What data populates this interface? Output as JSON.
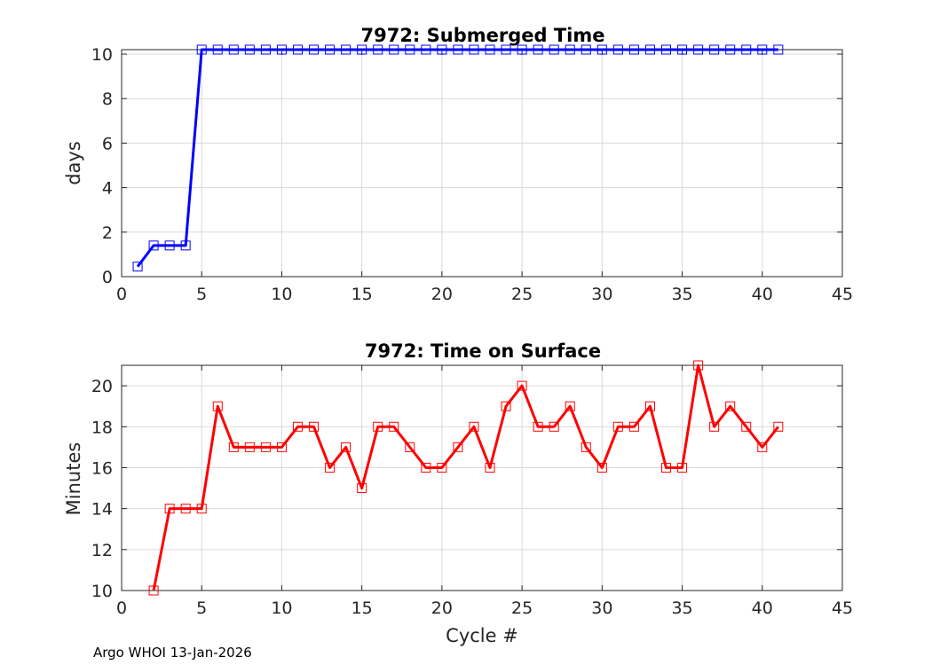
{
  "chart_data": [
    {
      "type": "line",
      "title": "7972: Submerged Time",
      "xlabel": "",
      "ylabel": "days",
      "xlim": [
        0,
        45
      ],
      "ylim": [
        0,
        10.2
      ],
      "xticks": [
        0,
        5,
        10,
        15,
        20,
        25,
        30,
        35,
        40,
        45
      ],
      "yticks": [
        0,
        2,
        4,
        6,
        8,
        10
      ],
      "grid": true,
      "color": "#0000ff",
      "marker": "square",
      "series": [
        {
          "x": [
            1,
            2,
            3,
            4,
            5,
            6,
            7,
            8,
            9,
            10,
            11,
            12,
            13,
            14,
            15,
            16,
            17,
            18,
            19,
            20,
            21,
            22,
            23,
            24,
            25,
            26,
            27,
            28,
            29,
            30,
            31,
            32,
            33,
            34,
            35,
            36,
            37,
            38,
            39,
            40,
            41
          ],
          "values": [
            0.45,
            1.4,
            1.4,
            1.4,
            10.2,
            10.2,
            10.2,
            10.2,
            10.2,
            10.2,
            10.2,
            10.2,
            10.2,
            10.2,
            10.2,
            10.2,
            10.2,
            10.2,
            10.2,
            10.2,
            10.2,
            10.2,
            10.2,
            10.2,
            10.2,
            10.2,
            10.2,
            10.2,
            10.2,
            10.2,
            10.2,
            10.2,
            10.2,
            10.2,
            10.2,
            10.2,
            10.2,
            10.2,
            10.2,
            10.2,
            10.2
          ]
        }
      ]
    },
    {
      "type": "line",
      "title": "7972: Time on Surface",
      "xlabel": "Cycle #",
      "ylabel": "Minutes",
      "xlim": [
        0,
        45
      ],
      "ylim": [
        10,
        21
      ],
      "xticks": [
        0,
        5,
        10,
        15,
        20,
        25,
        30,
        35,
        40,
        45
      ],
      "yticks": [
        10,
        12,
        14,
        16,
        18,
        20
      ],
      "grid": true,
      "color": "#ff0000",
      "marker": "square",
      "series": [
        {
          "x": [
            2,
            3,
            4,
            5,
            6,
            7,
            8,
            9,
            10,
            11,
            12,
            13,
            14,
            15,
            16,
            17,
            18,
            19,
            20,
            21,
            22,
            23,
            24,
            25,
            26,
            27,
            28,
            29,
            30,
            31,
            32,
            33,
            34,
            35,
            36,
            37,
            38,
            39,
            40,
            41
          ],
          "values": [
            10,
            14,
            14,
            14,
            19,
            17,
            17,
            17,
            17,
            18,
            18,
            16,
            17,
            15,
            18,
            18,
            17,
            16,
            16,
            17,
            18,
            16,
            19,
            20,
            18,
            18,
            19,
            17,
            16,
            18,
            18,
            19,
            16,
            16,
            21,
            18,
            19,
            18,
            17,
            18
          ]
        }
      ]
    }
  ],
  "footer": "Argo WHOI 13-Jan-2026"
}
